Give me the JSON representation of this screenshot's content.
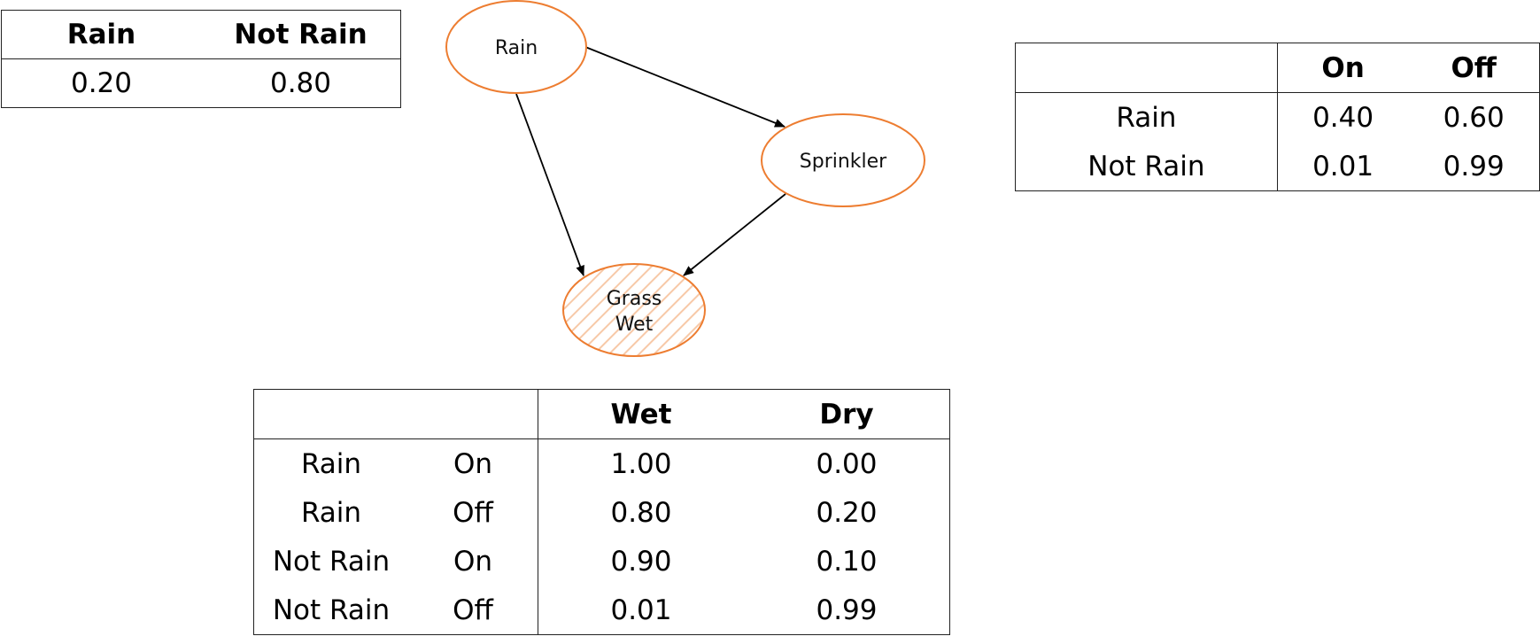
{
  "colors": {
    "node_stroke": "#ED7D31",
    "hatch": "#F7C9A8",
    "edge": "#000000",
    "table_border": "#222222"
  },
  "nodes": {
    "rain": "Rain",
    "sprinkler": "Sprinkler",
    "grass_wet_line1": "Grass",
    "grass_wet_line2": "Wet"
  },
  "prior_table": {
    "headers": [
      "Rain",
      "Not Rain"
    ],
    "values": [
      "0.20",
      "0.80"
    ]
  },
  "sprinkler_table": {
    "headers": [
      "",
      "On",
      "Off"
    ],
    "rows": [
      [
        "Rain",
        "0.40",
        "0.60"
      ],
      [
        "Not Rain",
        "0.01",
        "0.99"
      ]
    ]
  },
  "grass_table": {
    "headers": [
      "",
      "",
      "Wet",
      "Dry"
    ],
    "rows": [
      [
        "Rain",
        "On",
        "1.00",
        "0.00"
      ],
      [
        "Rain",
        "Off",
        "0.80",
        "0.20"
      ],
      [
        "Not Rain",
        "On",
        "0.90",
        "0.10"
      ],
      [
        "Not Rain",
        "Off",
        "0.01",
        "0.99"
      ]
    ]
  }
}
